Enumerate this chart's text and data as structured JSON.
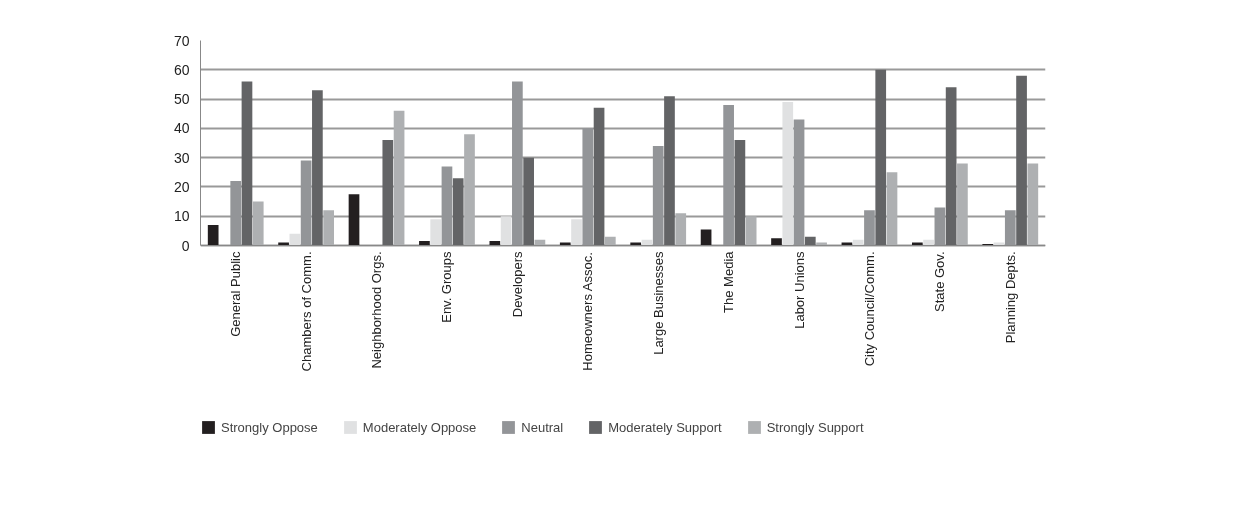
{
  "chart_data": {
    "type": "bar",
    "categories": [
      "General Public",
      "Chambers of Comm.",
      "Neighborhood Orgs.",
      "Env. Groups",
      "Developers",
      "Homeowners Assoc.",
      "Large Businesses",
      "The Media",
      "Labor Unions",
      "City Council/Comm.",
      "State Gov.",
      "Planning Depts."
    ],
    "series": [
      {
        "name": "Strongly Oppose",
        "color": "#231f20",
        "values": [
          7,
          1,
          17.5,
          1.5,
          1.5,
          1,
          1,
          5.5,
          2.5,
          1,
          1,
          0.5
        ]
      },
      {
        "name": "Moderately Oppose",
        "color": "#e0e1e2",
        "values": [
          0,
          4,
          0,
          9,
          10,
          9,
          2,
          0,
          49,
          2,
          2,
          1
        ]
      },
      {
        "name": "Neutral",
        "color": "#939598",
        "values": [
          22,
          29,
          0,
          27,
          56,
          40,
          34,
          48,
          43,
          12,
          13,
          12
        ]
      },
      {
        "name": "Moderately Support",
        "color": "#636466",
        "values": [
          56,
          53,
          36,
          23,
          30,
          47,
          51,
          36,
          3,
          60,
          54,
          58
        ]
      },
      {
        "name": "Strongly Support",
        "color": "#aeb0b2",
        "values": [
          15,
          12,
          46,
          38,
          2,
          3,
          11,
          10,
          1,
          25,
          28,
          28
        ]
      }
    ],
    "ylim": [
      0,
      70
    ],
    "yticks": [
      0,
      10,
      20,
      30,
      40,
      50,
      60,
      70
    ],
    "grid": "y",
    "legend": "bottom"
  }
}
